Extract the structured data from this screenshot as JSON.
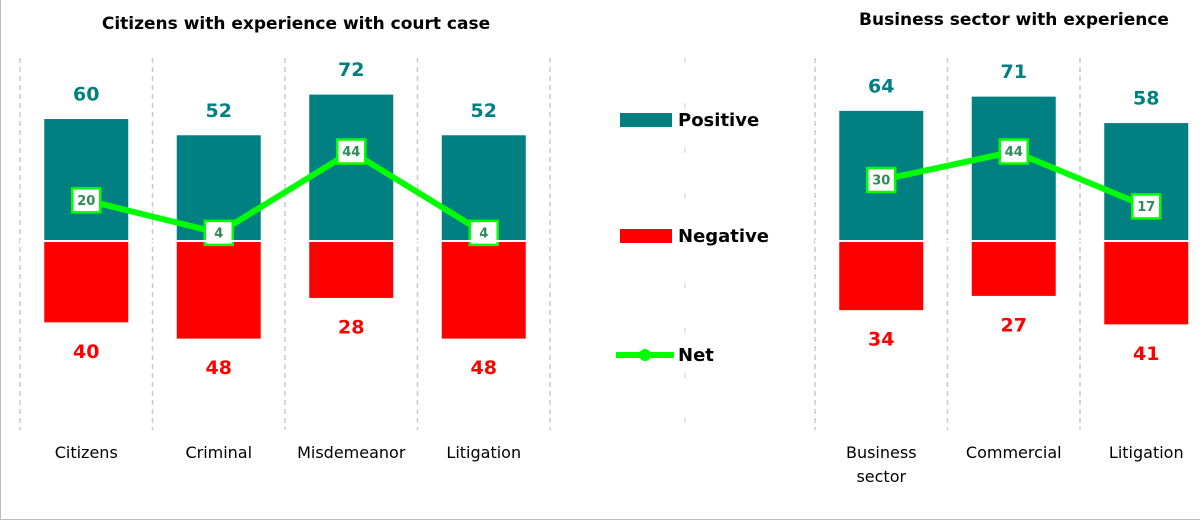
{
  "chart_data": [
    {
      "type": "bar",
      "title": "Citizens with experience with court case",
      "categories": [
        "Citizens",
        "Criminal",
        "Misdemeanor",
        "Litigation"
      ],
      "ylim": [
        -90,
        90
      ],
      "series": [
        {
          "name": "Positive",
          "color": "#008080",
          "values": [
            60,
            52,
            72,
            52
          ]
        },
        {
          "name": "Negative",
          "color": "#ff0000",
          "values": [
            -40,
            -48,
            -28,
            -48
          ],
          "value_labels": [
            "40",
            "48",
            "28",
            "48"
          ]
        },
        {
          "name": "Net",
          "type": "line",
          "color": "#00ff00",
          "values": [
            20,
            4,
            44,
            4
          ]
        }
      ]
    },
    {
      "type": "bar",
      "title": "Business sector with experience",
      "categories": [
        "Business sector",
        "Commercial",
        "Litigation"
      ],
      "ylim": [
        -90,
        90
      ],
      "series": [
        {
          "name": "Positive",
          "color": "#008080",
          "values": [
            64,
            71,
            58
          ]
        },
        {
          "name": "Negative",
          "color": "#ff0000",
          "values": [
            -34,
            -27,
            -41
          ],
          "value_labels": [
            "34",
            "27",
            "41"
          ]
        },
        {
          "name": "Net",
          "type": "line",
          "color": "#00ff00",
          "values": [
            30,
            44,
            17
          ]
        }
      ]
    }
  ]
}
